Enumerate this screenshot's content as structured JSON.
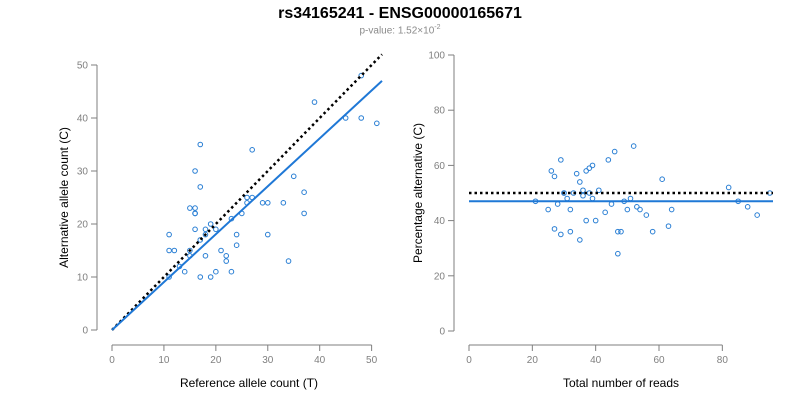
{
  "title": "rs34165241 - ENSG00000165671",
  "subtitle": {
    "prefix": "p-value: 1.52×10",
    "exponent": "-2"
  },
  "colors": {
    "points": "#2a7fd4",
    "fit_line": "#1f78d6",
    "reference_line": "#000000",
    "axis": "#7f7f7f",
    "subtitle": "#8a8a8a"
  },
  "chart_data": [
    {
      "type": "scatter",
      "title": "",
      "xlabel": "Reference allele count (T)",
      "ylabel": "Alternative allele count (C)",
      "xlim": [
        0,
        52
      ],
      "ylim": [
        0,
        50
      ],
      "xticks": [
        0,
        10,
        20,
        30,
        40,
        50
      ],
      "yticks": [
        0,
        10,
        20,
        30,
        40,
        50
      ],
      "grid": false,
      "points": [
        [
          11,
          18
        ],
        [
          12,
          15
        ],
        [
          11,
          15
        ],
        [
          11,
          10
        ],
        [
          13,
          12
        ],
        [
          14,
          11
        ],
        [
          15,
          15
        ],
        [
          15,
          23
        ],
        [
          16,
          23
        ],
        [
          16,
          22
        ],
        [
          15,
          14
        ],
        [
          17,
          35
        ],
        [
          16,
          30
        ],
        [
          17,
          27
        ],
        [
          16,
          19
        ],
        [
          16,
          22
        ],
        [
          18,
          18
        ],
        [
          17,
          17
        ],
        [
          18,
          19
        ],
        [
          18,
          14
        ],
        [
          19,
          20
        ],
        [
          20,
          19
        ],
        [
          21,
          15
        ],
        [
          20,
          11
        ],
        [
          19,
          10
        ],
        [
          17,
          10
        ],
        [
          22,
          14
        ],
        [
          22,
          13
        ],
        [
          23,
          21
        ],
        [
          23,
          11
        ],
        [
          24,
          16
        ],
        [
          24,
          18
        ],
        [
          25,
          22
        ],
        [
          26,
          24
        ],
        [
          26,
          25
        ],
        [
          27,
          34
        ],
        [
          27,
          25
        ],
        [
          29,
          24
        ],
        [
          30,
          24
        ],
        [
          30,
          18
        ],
        [
          33,
          24
        ],
        [
          34,
          13
        ],
        [
          35,
          29
        ],
        [
          37,
          26
        ],
        [
          37,
          22
        ],
        [
          39,
          43
        ],
        [
          45,
          40
        ],
        [
          48,
          40
        ],
        [
          48,
          48
        ],
        [
          51,
          39
        ]
      ],
      "fit_line": {
        "from": [
          0,
          0
        ],
        "to": [
          52,
          47
        ]
      },
      "reference_line": {
        "from": [
          0,
          0
        ],
        "to": [
          52,
          52
        ]
      }
    },
    {
      "type": "scatter",
      "title": "",
      "xlabel": "Total number of reads",
      "ylabel": "Percentage alternative (C)",
      "xlim": [
        0,
        96
      ],
      "ylim": [
        0,
        100
      ],
      "xticks": [
        0,
        20,
        40,
        60,
        80
      ],
      "yticks": [
        0,
        20,
        40,
        60,
        80,
        100
      ],
      "grid": false,
      "points": [
        [
          21,
          47
        ],
        [
          25,
          44
        ],
        [
          26,
          58
        ],
        [
          27,
          56
        ],
        [
          27,
          37
        ],
        [
          28,
          46
        ],
        [
          29,
          62
        ],
        [
          30,
          50
        ],
        [
          30,
          50
        ],
        [
          29,
          35
        ],
        [
          31,
          48
        ],
        [
          32,
          36
        ],
        [
          32,
          44
        ],
        [
          33,
          50
        ],
        [
          34,
          57
        ],
        [
          35,
          54
        ],
        [
          35,
          33
        ],
        [
          36,
          51
        ],
        [
          36,
          49
        ],
        [
          37,
          40
        ],
        [
          37,
          58
        ],
        [
          38,
          59
        ],
        [
          38,
          50
        ],
        [
          39,
          60
        ],
        [
          39,
          48
        ],
        [
          40,
          40
        ],
        [
          41,
          51
        ],
        [
          43,
          43
        ],
        [
          44,
          62
        ],
        [
          45,
          46
        ],
        [
          46,
          65
        ],
        [
          47,
          28
        ],
        [
          47,
          36
        ],
        [
          48,
          36
        ],
        [
          49,
          47
        ],
        [
          50,
          44
        ],
        [
          51,
          48
        ],
        [
          52,
          67
        ],
        [
          53,
          45
        ],
        [
          54,
          44
        ],
        [
          56,
          42
        ],
        [
          58,
          36
        ],
        [
          61,
          55
        ],
        [
          63,
          38
        ],
        [
          64,
          44
        ],
        [
          82,
          52
        ],
        [
          85,
          47
        ],
        [
          88,
          45
        ],
        [
          91,
          42
        ],
        [
          95,
          50
        ]
      ],
      "fit_line": {
        "y": 47
      },
      "reference_line": {
        "y": 50
      }
    }
  ]
}
